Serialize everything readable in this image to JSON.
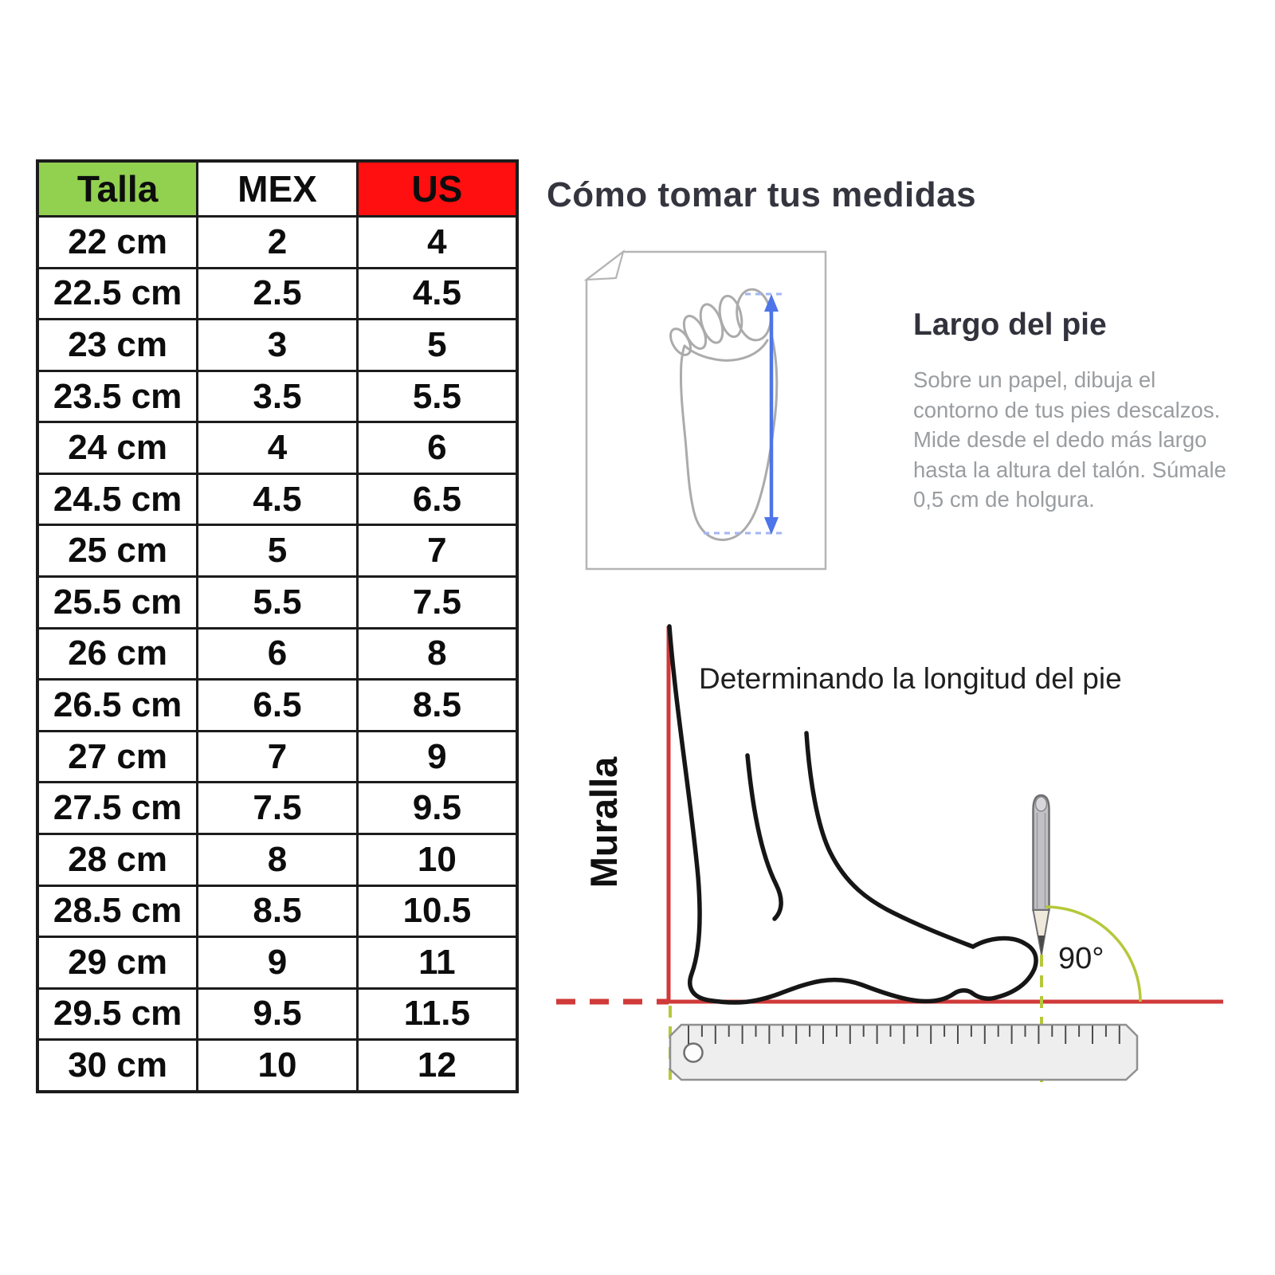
{
  "size_table": {
    "columns": [
      "Talla",
      "MEX",
      "US"
    ],
    "rows": [
      [
        "22 cm",
        "2",
        "4"
      ],
      [
        "22.5 cm",
        "2.5",
        "4.5"
      ],
      [
        "23 cm",
        "3",
        "5"
      ],
      [
        "23.5 cm",
        "3.5",
        "5.5"
      ],
      [
        "24 cm",
        "4",
        "6"
      ],
      [
        "24.5 cm",
        "4.5",
        "6.5"
      ],
      [
        "25 cm",
        "5",
        "7"
      ],
      [
        "25.5 cm",
        "5.5",
        "7.5"
      ],
      [
        "26 cm",
        "6",
        "8"
      ],
      [
        "26.5 cm",
        "6.5",
        "8.5"
      ],
      [
        "27 cm",
        "7",
        "9"
      ],
      [
        "27.5 cm",
        "7.5",
        "9.5"
      ],
      [
        "28 cm",
        "8",
        "10"
      ],
      [
        "28.5 cm",
        "8.5",
        "10.5"
      ],
      [
        "29 cm",
        "9",
        "11"
      ],
      [
        "29.5 cm",
        "9.5",
        "11.5"
      ],
      [
        "30 cm",
        "10",
        "12"
      ]
    ]
  },
  "guide": {
    "title": "Cómo tomar tus medidas",
    "largo_heading": "Largo del pie",
    "largo_body": "Sobre un papel, dibuja el\ncontorno de tus pies descalzos.\nMide desde el dedo más largo\nhasta la altura del talón. Súmale\n0,5 cm de holgura."
  },
  "diagram": {
    "title": "Determinando la longitud del pie",
    "wall_label": "Muralla",
    "angle_label": "90°"
  },
  "colors": {
    "header_green": "#92d050",
    "header_red": "#ff0f0f",
    "measure_red": "#d03a3a",
    "guide_green": "#b5c83a",
    "arrow_blue": "#4d74e8"
  }
}
